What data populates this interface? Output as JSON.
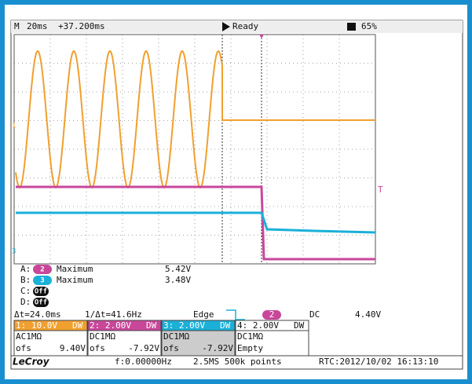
{
  "status_bar": {
    "mode": "M",
    "timebase": "20ms",
    "delay": "+37.200ms",
    "state": "Ready",
    "battery": "65%"
  },
  "markers": {
    "channel_1": "1",
    "channel_3": "3",
    "trigger": "T"
  },
  "measurements": [
    {
      "slot": "A:",
      "badge": "2",
      "param": "Maximum",
      "value": "5.42V"
    },
    {
      "slot": "B:",
      "badge": "3",
      "param": "Maximum",
      "value": "3.48V"
    },
    {
      "slot": "C:",
      "badge": "Off"
    },
    {
      "slot": "D:",
      "badge": "Off"
    }
  ],
  "cursor": {
    "delta_t": "Δt=24.0ms",
    "inv_delta_t": "1/Δt=41.6Hz"
  },
  "trigger": {
    "mode": "Edge",
    "channel": "2",
    "coupling": "DC",
    "level": "4.40V"
  },
  "channels": [
    {
      "scale": "1: 10.0V",
      "bw": "DW",
      "coupling": "AC1MΩ",
      "ofs": "ofs",
      "offset": "9.40V"
    },
    {
      "scale": "2: 2.00V",
      "bw": "DW",
      "coupling": "DC1MΩ",
      "ofs": "ofs",
      "offset": "-7.92V"
    },
    {
      "scale": "3: 2.00V",
      "bw": "DW",
      "coupling": "DC1MΩ",
      "ofs": "ofs",
      "offset": "-7.92V"
    },
    {
      "scale": "4: 2.00V",
      "bw": "DW",
      "coupling": "DC1MΩ",
      "status": "Empty"
    }
  ],
  "footer": {
    "brand": "LeCroy",
    "frequency": "f:0.00000Hz",
    "sampling": "2.5MS 500k points",
    "rtc": "RTC:2012/10/02 16:13:10"
  }
}
